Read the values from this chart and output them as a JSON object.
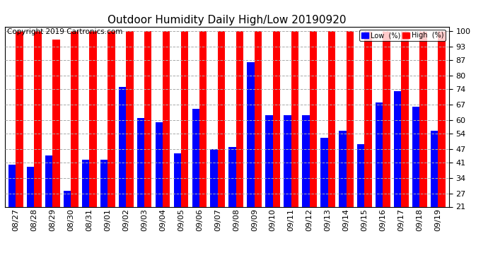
{
  "title": "Outdoor Humidity Daily High/Low 20190920",
  "copyright": "Copyright 2019 Cartronics.com",
  "background_color": "#ffffff",
  "bar_color_low": "#0000ff",
  "bar_color_high": "#ff0000",
  "yticks": [
    21,
    27,
    34,
    41,
    47,
    54,
    60,
    67,
    74,
    80,
    87,
    93,
    100
  ],
  "ylim": [
    21,
    100
  ],
  "dates": [
    "08/27",
    "08/28",
    "08/29",
    "08/30",
    "08/31",
    "09/01",
    "09/02",
    "09/03",
    "09/04",
    "09/05",
    "09/06",
    "09/07",
    "09/08",
    "09/09",
    "09/10",
    "09/11",
    "09/12",
    "09/13",
    "09/14",
    "09/15",
    "09/16",
    "09/17",
    "09/18",
    "09/19"
  ],
  "high": [
    100,
    100,
    96,
    100,
    100,
    100,
    100,
    100,
    100,
    100,
    100,
    100,
    100,
    100,
    100,
    100,
    100,
    100,
    100,
    100,
    100,
    100,
    100,
    100
  ],
  "low": [
    40,
    39,
    44,
    28,
    42,
    42,
    75,
    61,
    59,
    45,
    65,
    47,
    48,
    86,
    62,
    62,
    62,
    52,
    55,
    49,
    68,
    73,
    66,
    55
  ],
  "legend_low_label": "Low  (%)",
  "legend_high_label": "High  (%)",
  "title_fontsize": 11,
  "tick_fontsize": 8,
  "copyright_fontsize": 7.5,
  "bar_width": 0.4,
  "group_width": 1.0
}
